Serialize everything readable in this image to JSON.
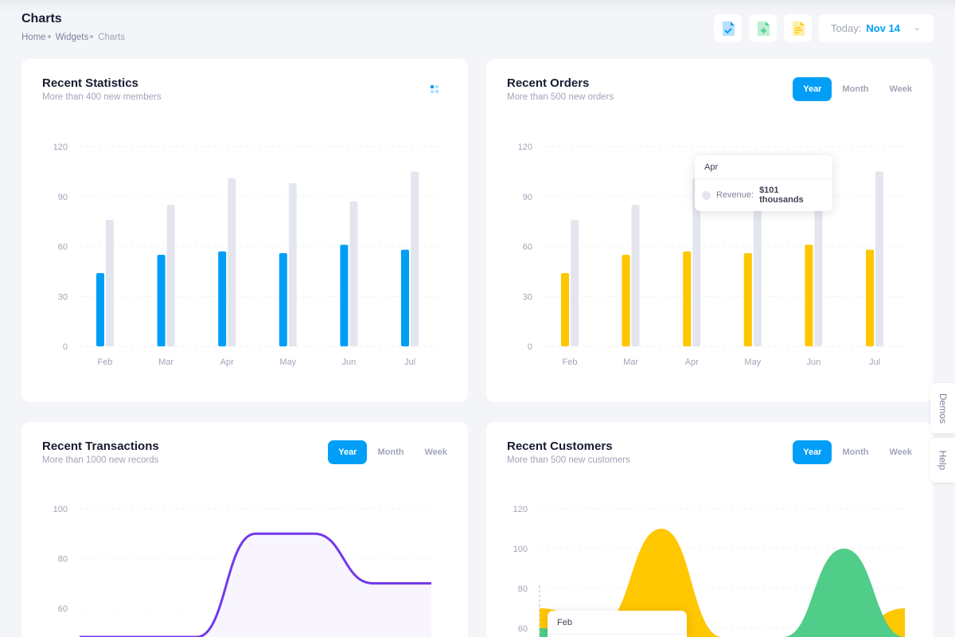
{
  "header": {
    "title": "Charts",
    "breadcrumb": [
      "Home",
      "Widgets",
      "Charts"
    ],
    "date_label": "Today:",
    "date_value": "Nov 14"
  },
  "toolbar": {
    "icons": [
      "file-check-icon",
      "file-add-icon",
      "file-text-icon"
    ]
  },
  "side_tabs": [
    "Demos",
    "Help"
  ],
  "colors": {
    "primary": "#009ef7",
    "warning": "#ffc700",
    "success": "#50cd89",
    "purple": "#7239ea",
    "grey": "#e4e6ef"
  },
  "cards": [
    {
      "title": "Recent Statistics",
      "subtitle": "More than 400 new members"
    },
    {
      "title": "Recent Orders",
      "subtitle": "More than 500 new orders",
      "tabs": [
        "Year",
        "Month",
        "Week"
      ],
      "active_tab": "Year",
      "tooltip": {
        "title": "Apr",
        "label": "Revenue:",
        "value": "$101 thousands"
      }
    },
    {
      "title": "Recent Transactions",
      "subtitle": "More than 1000 new records",
      "tabs": [
        "Year",
        "Month",
        "Week"
      ],
      "active_tab": "Year"
    },
    {
      "title": "Recent Customers",
      "subtitle": "More than 500 new customers",
      "tabs": [
        "Year",
        "Month",
        "Week"
      ],
      "active_tab": "Year",
      "tooltip": {
        "title": "Feb"
      }
    }
  ],
  "chart_data": [
    {
      "type": "bar",
      "categories": [
        "Feb",
        "Mar",
        "Apr",
        "May",
        "Jun",
        "Jul"
      ],
      "yticks": [
        0,
        30,
        60,
        90,
        120
      ],
      "ylim": [
        0,
        120
      ],
      "grid": true,
      "series": [
        {
          "values": [
            44,
            55,
            57,
            56,
            61,
            58
          ],
          "color": "#009ef7"
        },
        {
          "values": [
            76,
            85,
            101,
            98,
            87,
            105
          ],
          "color": "#e4e6ef"
        }
      ]
    },
    {
      "type": "bar",
      "categories": [
        "Feb",
        "Mar",
        "Apr",
        "May",
        "Jun",
        "Jul"
      ],
      "yticks": [
        0,
        30,
        60,
        90,
        120
      ],
      "ylim": [
        0,
        120
      ],
      "grid": true,
      "series": [
        {
          "values": [
            44,
            55,
            57,
            56,
            61,
            58
          ],
          "color": "#ffc700"
        },
        {
          "values": [
            76,
            85,
            101,
            98,
            87,
            105
          ],
          "color": "#e4e6ef"
        }
      ]
    },
    {
      "type": "area",
      "yticks": [
        60,
        80,
        100
      ],
      "grid": true,
      "series": [
        {
          "values": [
            30,
            30,
            30,
            90,
            90,
            70,
            70
          ],
          "color": "#7239ea"
        }
      ]
    },
    {
      "type": "area",
      "yticks": [
        60,
        80,
        100,
        120
      ],
      "grid": true,
      "series": [
        {
          "values": [
            70,
            62,
            110,
            30,
            25,
            35,
            70
          ],
          "color": "#ffc700"
        },
        {
          "values": [
            60,
            35,
            30,
            25,
            40,
            100,
            45
          ],
          "color": "#50cd89"
        }
      ]
    }
  ]
}
